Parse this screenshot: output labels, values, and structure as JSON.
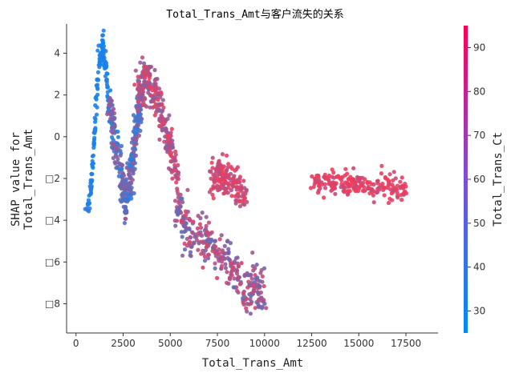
{
  "chart_data": {
    "type": "scatter",
    "title": "Total_Trans_Amt与客户流失的关系",
    "xlabel": "Total_Trans_Amt",
    "ylabel": [
      "SHAP value for",
      "Total_Trans_Amt"
    ],
    "xlim": [
      -500,
      19200
    ],
    "ylim": [
      -9.4,
      5.4
    ],
    "x_ticks": [
      0,
      2500,
      5000,
      7500,
      10000,
      12500,
      15000,
      17500
    ],
    "x_tick_labels": [
      "0",
      "2500",
      "5000",
      "7500",
      "10000",
      "12500",
      "15000",
      "17500"
    ],
    "y_ticks": [
      4,
      2,
      0,
      -2,
      -4,
      -6,
      -8
    ],
    "y_tick_labels": [
      "4",
      "2",
      "0",
      "□2",
      "□4",
      "□6",
      "□8"
    ],
    "colorbar": {
      "label": "Total_Trans_Ct",
      "range": [
        25,
        95
      ],
      "ticks": [
        30,
        40,
        50,
        60,
        70,
        80,
        90
      ],
      "tick_labels": [
        "30",
        "40",
        "50",
        "60",
        "70",
        "80",
        "90"
      ],
      "colors": [
        "#008bfb",
        "#ff0052"
      ]
    },
    "grid": false,
    "clusters": [
      {
        "x_center": 1000,
        "x_spread": 450,
        "y_at": [
          [
            600,
            -3.5
          ],
          [
            800,
            -2.5
          ],
          [
            1000,
            0.5
          ],
          [
            1200,
            3.5
          ],
          [
            1400,
            4.5
          ],
          [
            1600,
            3.0
          ],
          [
            1800,
            1.0
          ]
        ],
        "y_spread": 0.6,
        "color_min": 27,
        "color_max": 38,
        "n": 160
      },
      {
        "x_center": 2500,
        "x_spread": 800,
        "y_at": [
          [
            1800,
            1.5
          ],
          [
            2000,
            0.0
          ],
          [
            2300,
            -1.5
          ],
          [
            2600,
            -3.0
          ],
          [
            2900,
            -2.0
          ],
          [
            3200,
            0.5
          ],
          [
            3500,
            2.0
          ]
        ],
        "y_spread": 1.1,
        "color_min": 35,
        "color_max": 70,
        "n": 320
      },
      {
        "x_center": 4000,
        "x_spread": 700,
        "y_at": [
          [
            3300,
            2.0
          ],
          [
            3700,
            2.8
          ],
          [
            4100,
            2.3
          ],
          [
            4500,
            1.2
          ],
          [
            5000,
            -0.5
          ],
          [
            5400,
            -2.0
          ]
        ],
        "y_spread": 0.9,
        "color_min": 60,
        "color_max": 92,
        "n": 260
      },
      {
        "x_center": 6500,
        "x_spread": 1500,
        "y_at": [
          [
            5300,
            -3.5
          ],
          [
            6000,
            -4.5
          ],
          [
            7000,
            -5.0
          ],
          [
            8000,
            -5.8
          ],
          [
            9000,
            -7.2
          ],
          [
            10000,
            -7.5
          ]
        ],
        "y_spread": 0.9,
        "color_min": 50,
        "color_max": 85,
        "n": 320
      },
      {
        "x_center": 8000,
        "x_spread": 700,
        "y_at": [
          [
            7200,
            -1.8
          ],
          [
            7800,
            -2.0
          ],
          [
            8400,
            -2.3
          ],
          [
            9000,
            -3.0
          ]
        ],
        "y_spread": 0.7,
        "color_min": 72,
        "color_max": 94,
        "n": 160
      },
      {
        "x_center": 15000,
        "x_spread": 1300,
        "y_at": [
          [
            12500,
            -2.2
          ],
          [
            14000,
            -2.2
          ],
          [
            15500,
            -2.4
          ],
          [
            17500,
            -2.5
          ]
        ],
        "y_spread": 0.45,
        "color_min": 78,
        "color_max": 94,
        "n": 220
      }
    ]
  }
}
